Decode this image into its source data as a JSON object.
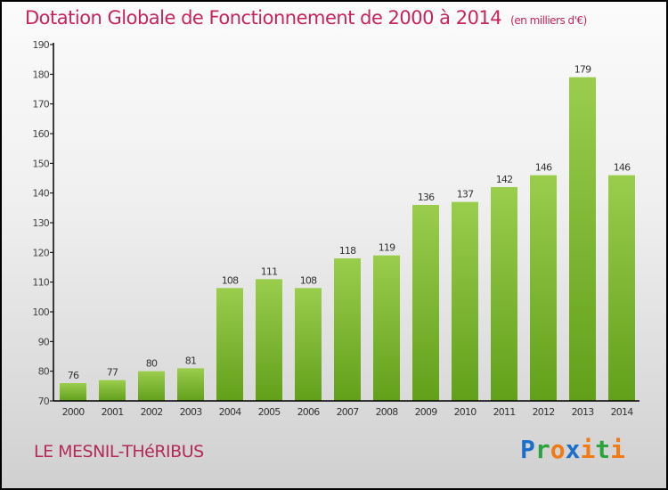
{
  "title": "Dotation Globale de Fonctionnement de 2000 à 2014",
  "subtitle": "(en milliers d'€)",
  "commune": "LE MESNIL-THéRIBUS",
  "logo": {
    "text": "Proxiti",
    "letters": [
      "P",
      "r",
      "o",
      "x",
      "i",
      "t",
      "i"
    ],
    "colors": [
      "#1b6fc8",
      "#2aa43a",
      "#f07a16",
      "#1b6fc8",
      "#f07a16",
      "#2aa43a",
      "#f07a16"
    ]
  },
  "chart_data": {
    "type": "bar",
    "title": "Dotation Globale de Fonctionnement de 2000 à 2014",
    "xlabel": "",
    "ylabel": "",
    "categories": [
      "2000",
      "2001",
      "2002",
      "2003",
      "2004",
      "2005",
      "2006",
      "2007",
      "2008",
      "2009",
      "2010",
      "2011",
      "2012",
      "2013",
      "2014"
    ],
    "values": [
      76,
      77,
      80,
      81,
      108,
      111,
      108,
      118,
      119,
      136,
      137,
      142,
      146,
      179,
      146
    ],
    "ylim": [
      70,
      190
    ],
    "yticks": [
      70,
      80,
      90,
      100,
      110,
      120,
      130,
      140,
      150,
      160,
      170,
      180,
      190
    ],
    "bar_color": "#7ab52c",
    "grid": false
  }
}
